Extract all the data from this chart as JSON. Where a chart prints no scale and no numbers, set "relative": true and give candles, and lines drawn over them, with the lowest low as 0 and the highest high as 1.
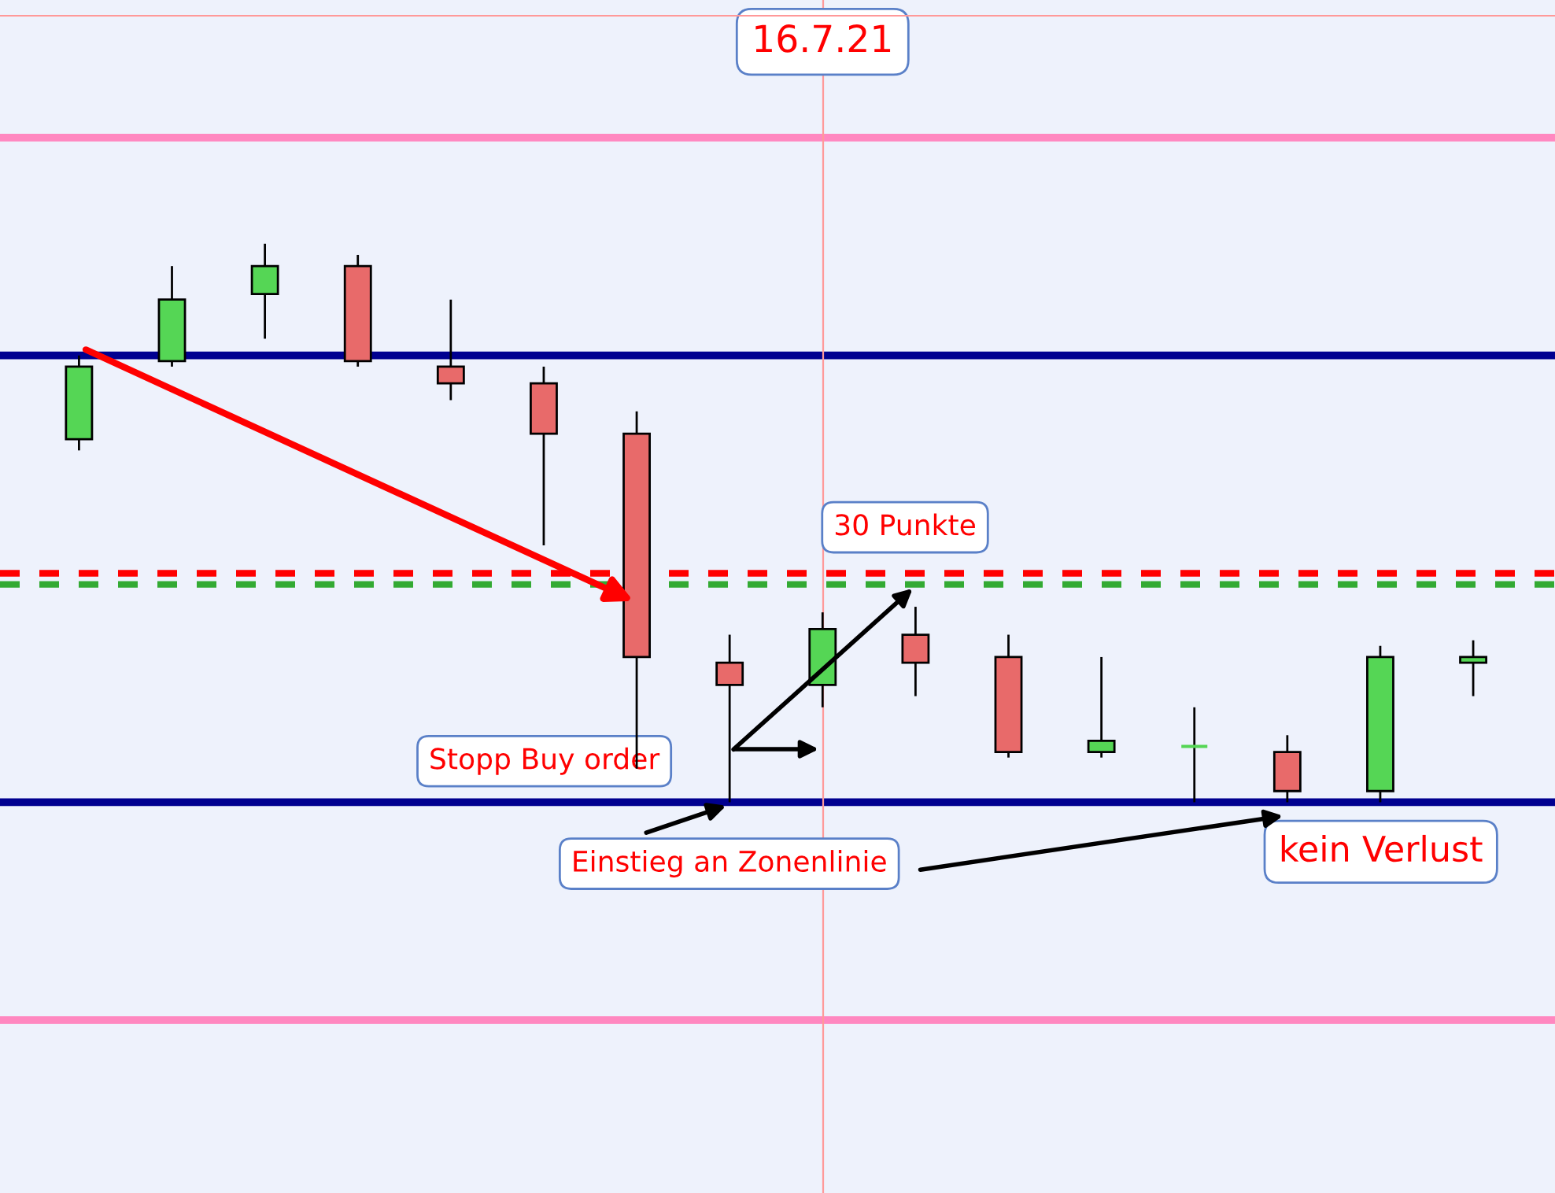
{
  "chart_data": {
    "type": "candlestick",
    "relative": true,
    "categories": [
      null,
      null,
      null,
      null,
      null,
      null,
      null,
      null,
      null,
      null,
      null,
      null,
      null,
      null,
      null,
      null
    ],
    "ohlc": [
      [
        0.65,
        0.8,
        0.63,
        0.78
      ],
      [
        0.79,
        0.96,
        0.78,
        0.9
      ],
      [
        0.91,
        1.0,
        0.83,
        0.96
      ],
      [
        0.96,
        0.98,
        0.78,
        0.79
      ],
      [
        0.78,
        0.9,
        0.72,
        0.75
      ],
      [
        0.75,
        0.78,
        0.46,
        0.66
      ],
      [
        0.66,
        0.7,
        0.06,
        0.26
      ],
      [
        0.25,
        0.3,
        0.0,
        0.21
      ],
      [
        0.21,
        0.34,
        0.17,
        0.31
      ],
      [
        0.3,
        0.35,
        0.19,
        0.25
      ],
      [
        0.26,
        0.3,
        0.08,
        0.09
      ],
      [
        0.09,
        0.26,
        0.08,
        0.11
      ],
      [
        0.1,
        0.17,
        0.0,
        0.1
      ],
      [
        0.09,
        0.12,
        0.0,
        0.02
      ],
      [
        0.02,
        0.28,
        0.0,
        0.26
      ],
      [
        0.25,
        0.29,
        0.19,
        0.26
      ]
    ],
    "colors": [
      "#55d655",
      "#55d655",
      "#55d655",
      "#e86a6a",
      "#e86a6a",
      "#e86a6a",
      "#e86a6a",
      "#e86a6a",
      "#55d655",
      "#e86a6a",
      "#e86a6a",
      "#55d655",
      "#55d655",
      "#e86a6a",
      "#55d655",
      "#55d655"
    ],
    "ref_lines": [
      {
        "axis": "y",
        "value": 1.19,
        "color": "#ff88c0"
      },
      {
        "axis": "y",
        "value": 0.8,
        "color": "#000090"
      },
      {
        "axis": "y",
        "value": 0.41,
        "color": "#ff0000",
        "line_style": "dashed"
      },
      {
        "axis": "y",
        "value": 0.39,
        "color": "#33aa33",
        "line_style": "dashed"
      },
      {
        "axis": "y",
        "value": 0.0,
        "color": "#000090"
      },
      {
        "axis": "y",
        "value": -0.39,
        "color": "#ff88c0"
      }
    ],
    "annotations": [
      "16.7.21",
      "30 Punkte",
      "Stopp Buy order",
      "Einstieg an Zonenlinie",
      "kein Verlust"
    ],
    "grid": false
  }
}
